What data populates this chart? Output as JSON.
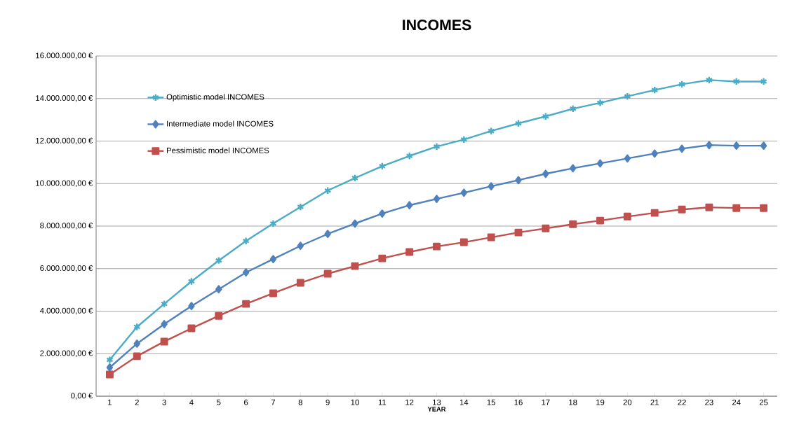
{
  "chart_data": {
    "type": "line",
    "title": "INCOMES",
    "xlabel": "YEAR",
    "categories": [
      "1",
      "2",
      "3",
      "4",
      "5",
      "6",
      "7",
      "8",
      "9",
      "10",
      "11",
      "12",
      "13",
      "14",
      "15",
      "16",
      "17",
      "18",
      "19",
      "20",
      "21",
      "22",
      "23",
      "24",
      "25"
    ],
    "series": [
      {
        "name": "Optimistic model INCOMES",
        "color": "#4bacc6",
        "marker": "cross",
        "values": [
          1710000,
          3260000,
          4340000,
          5400000,
          6380000,
          7300000,
          8120000,
          8900000,
          9670000,
          10260000,
          10820000,
          11300000,
          11740000,
          12070000,
          12470000,
          12830000,
          13160000,
          13520000,
          13800000,
          14100000,
          14400000,
          14670000,
          14870000,
          14800000,
          14800000
        ]
      },
      {
        "name": "Intermediate model INCOMES",
        "color": "#4f81bd",
        "marker": "diamond",
        "values": [
          1350000,
          2470000,
          3390000,
          4240000,
          5030000,
          5820000,
          6450000,
          7070000,
          7630000,
          8120000,
          8590000,
          8980000,
          9280000,
          9570000,
          9870000,
          10160000,
          10460000,
          10720000,
          10950000,
          11180000,
          11410000,
          11640000,
          11810000,
          11780000,
          11780000
        ]
      },
      {
        "name": "Pessimistic model INCOMES",
        "color": "#c0504d",
        "marker": "square",
        "values": [
          1020000,
          1880000,
          2570000,
          3190000,
          3780000,
          4340000,
          4840000,
          5330000,
          5760000,
          6120000,
          6480000,
          6780000,
          7040000,
          7240000,
          7470000,
          7700000,
          7890000,
          8090000,
          8260000,
          8450000,
          8620000,
          8780000,
          8880000,
          8850000,
          8850000
        ]
      }
    ],
    "ylim": [
      0,
      16000000
    ],
    "yticks": [
      {
        "value": 0,
        "label": "0,00 €"
      },
      {
        "value": 2000000,
        "label": "2.000.000,00 €"
      },
      {
        "value": 4000000,
        "label": "4.000.000,00 €"
      },
      {
        "value": 6000000,
        "label": "6.000.000,00 €"
      },
      {
        "value": 8000000,
        "label": "8.000.000,00 €"
      },
      {
        "value": 10000000,
        "label": "10.000.000,00 €"
      },
      {
        "value": 12000000,
        "label": "12.000.000,00 €"
      },
      {
        "value": 14000000,
        "label": "14.000.000,00 €"
      },
      {
        "value": 16000000,
        "label": "16.000.000,00 €"
      }
    ],
    "grid": "y",
    "legend": "top left",
    "line_style": "solid"
  }
}
